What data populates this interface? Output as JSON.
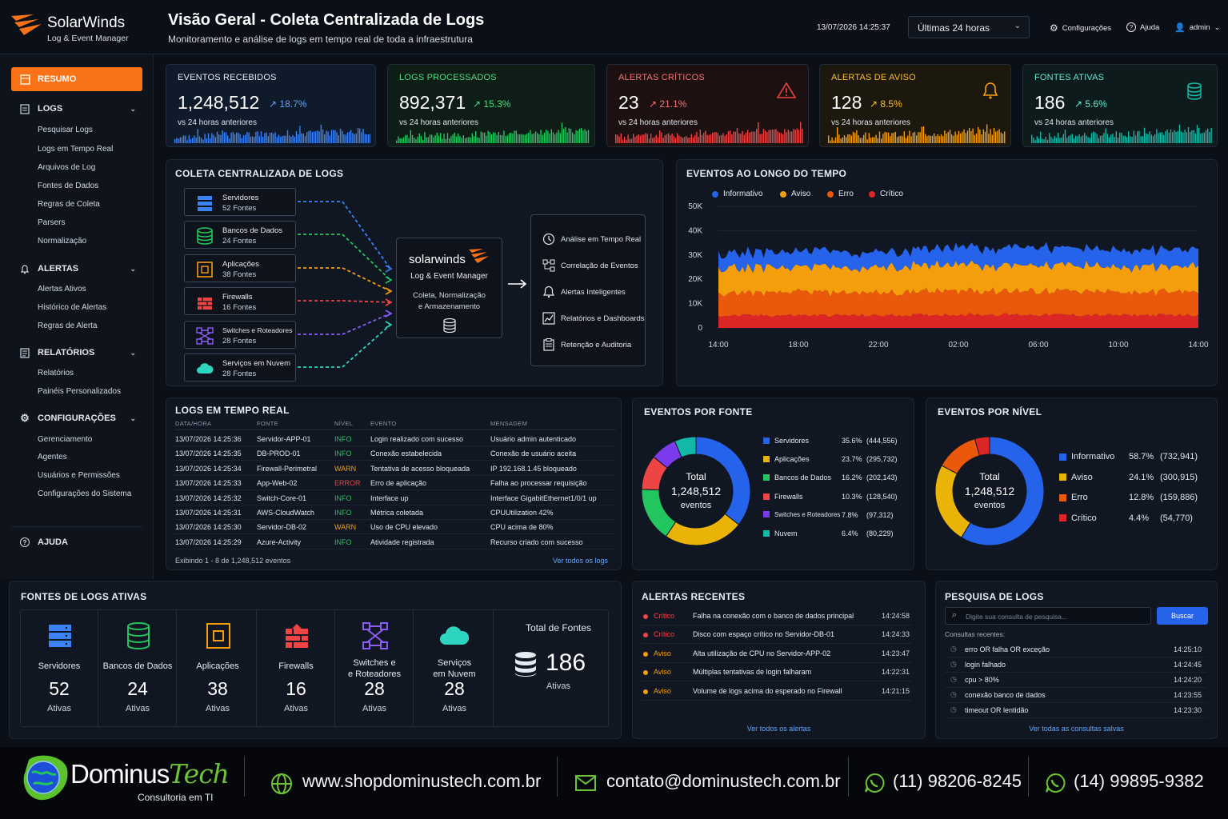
{
  "brand": {
    "name": "SolarWinds",
    "product": "Log & Event Manager"
  },
  "header": {
    "title": "Visão Geral - Coleta Centralizada de Logs",
    "subtitle": "Monitoramento e análise de logs em tempo real de toda a infraestrutura",
    "datetime": "13/07/2026 14:25:37",
    "range": "Últimas 24 horas",
    "settings": "Configurações",
    "help": "Ajuda",
    "user": "admin"
  },
  "sidebar": {
    "resumo": "RESUMO",
    "logs": {
      "label": "LOGS",
      "items": [
        "Pesquisar Logs",
        "Logs em Tempo Real",
        "Arquivos de Log",
        "Fontes de Dados",
        "Regras de Coleta",
        "Parsers",
        "Normalização"
      ]
    },
    "alertas": {
      "label": "ALERTAS",
      "items": [
        "Alertas Ativos",
        "Histórico de Alertas",
        "Regras de Alerta"
      ]
    },
    "relatorios": {
      "label": "RELATÓRIOS",
      "items": [
        "Relatórios",
        "Painéis Personalizados"
      ]
    },
    "config": {
      "label": "CONFIGURAÇÕES",
      "items": [
        "Gerenciamento",
        "Agentes",
        "Usuários e Permissões",
        "Configurações do Sistema"
      ]
    },
    "ajuda": "AJUDA"
  },
  "kpis": [
    {
      "title": "EVENTOS RECEBIDOS",
      "value": "1,248,512",
      "delta": "18.7%",
      "sub": "vs 24 horas anteriores",
      "color": "#3b82f6"
    },
    {
      "title": "LOGS PROCESSADOS",
      "value": "892,371",
      "delta": "15.3%",
      "sub": "vs 24 horas anteriores",
      "color": "#22c55e"
    },
    {
      "title": "ALERTAS CRÍTICOS",
      "value": "23",
      "delta": "21.1%",
      "sub": "vs 24 horas anteriores",
      "color": "#ef4444"
    },
    {
      "title": "ALERTAS DE AVISO",
      "value": "128",
      "delta": "8.5%",
      "sub": "vs 24 horas anteriores",
      "color": "#f59e0b"
    },
    {
      "title": "FONTES ATIVAS",
      "value": "186",
      "delta": "5.6%",
      "sub": "vs 24 horas anteriores",
      "color": "#14b8a6"
    }
  ],
  "collection": {
    "title": "COLETA CENTRALIZADA DE LOGS",
    "sources": [
      {
        "name": "Servidores",
        "count": "52 Fontes",
        "color": "#3b82f6",
        "icon": "server-icon"
      },
      {
        "name": "Bancos de Dados",
        "count": "24 Fontes",
        "color": "#22c55e",
        "icon": "database-icon"
      },
      {
        "name": "Aplicações",
        "count": "38 Fontes",
        "color": "#f59e0b",
        "icon": "app-icon"
      },
      {
        "name": "Firewalls",
        "count": "16 Fontes",
        "color": "#ef4444",
        "icon": "firewall-icon"
      },
      {
        "name": "Switches e Roteadores",
        "count": "28 Fontes",
        "color": "#8b5cf6",
        "icon": "switch-icon"
      },
      {
        "name": "Serviços em Nuvem",
        "count": "28 Fontes",
        "color": "#2dd4bf",
        "icon": "cloud-icon"
      }
    ],
    "center": {
      "brand": "solarwinds",
      "product": "Log & Event Manager",
      "desc1": "Coleta, Normalização",
      "desc2": "e Armazenamento"
    },
    "outputs": [
      "Análise em Tempo Real",
      "Correlação de Eventos",
      "Alertas Inteligentes",
      "Relatórios e Dashboards",
      "Retenção e Auditoria"
    ]
  },
  "timechart": {
    "title": "EVENTOS AO LONGO DO TEMPO"
  },
  "chart_data": {
    "type": "area",
    "stacked": true,
    "x": [
      "14:00",
      "18:00",
      "22:00",
      "02:00",
      "06:00",
      "10:00",
      "14:00"
    ],
    "ylim": [
      0,
      50000
    ],
    "yticks": [
      "50K",
      "40K",
      "30K",
      "20K",
      "10K",
      "0"
    ],
    "legend_position": "top-left",
    "series": [
      {
        "name": "Informativo",
        "color": "#2563eb",
        "values": [
          6000,
          6500,
          6200,
          7000,
          7500,
          6800,
          7200
        ]
      },
      {
        "name": "Aviso",
        "color": "#f59e0b",
        "values": [
          10000,
          10500,
          10200,
          11000,
          10800,
          10300,
          10600
        ]
      },
      {
        "name": "Erro",
        "color": "#ea580c",
        "values": [
          9000,
          9500,
          9300,
          10000,
          9800,
          9400,
          9600
        ]
      },
      {
        "name": "Crítico",
        "color": "#dc2626",
        "values": [
          5000,
          5200,
          5100,
          5500,
          5400,
          5200,
          5300
        ]
      }
    ]
  },
  "logs": {
    "title": "LOGS EM TEMPO REAL",
    "headers": [
      "DATA/HORA",
      "FONTE",
      "NÍVEL",
      "EVENTO",
      "MENSAGEM"
    ],
    "rows": [
      [
        "13/07/2026 14:25:36",
        "Servidor-APP-01",
        "INFO",
        "Login realizado com sucesso",
        "Usuário admin autenticado"
      ],
      [
        "13/07/2026 14:25:35",
        "DB-PROD-01",
        "INFO",
        "Conexão estabelecida",
        "Conexão de usuário aceita"
      ],
      [
        "13/07/2026 14:25:34",
        "Firewall-Perimetral",
        "WARN",
        "Tentativa de acesso bloqueada",
        "IP 192.168.1.45 bloqueado"
      ],
      [
        "13/07/2026 14:25:33",
        "App-Web-02",
        "ERROR",
        "Erro de aplicação",
        "Falha ao processar requisição"
      ],
      [
        "13/07/2026 14:25:32",
        "Switch-Core-01",
        "INFO",
        "Interface up",
        "Interface GigabitEthernet1/0/1 up"
      ],
      [
        "13/07/2026 14:25:31",
        "AWS-CloudWatch",
        "INFO",
        "Métrica coletada",
        "CPUUtilization 42%"
      ],
      [
        "13/07/2026 14:25:30",
        "Servidor-DB-02",
        "WARN",
        "Uso de CPU elevado",
        "CPU acima de 80%"
      ],
      [
        "13/07/2026 14:25:29",
        "Azure-Activity",
        "INFO",
        "Atividade registrada",
        "Recurso criado com sucesso"
      ]
    ],
    "footer": "Exibindo 1 - 8 de 1,248,512 eventos",
    "link": "Ver todos os logs"
  },
  "by_source": {
    "title": "EVENTOS POR FONTE",
    "total_label": "Total",
    "total": "1,248,512",
    "unit": "eventos",
    "items": [
      {
        "name": "Servidores",
        "pct": "35.6%",
        "count": "(444,556)",
        "value": 35.6,
        "color": "#2563eb"
      },
      {
        "name": "Aplicações",
        "pct": "23.7%",
        "count": "(295,732)",
        "value": 23.7,
        "color": "#eab308"
      },
      {
        "name": "Bancos de Dados",
        "pct": "16.2%",
        "count": "(202,143)",
        "value": 16.2,
        "color": "#22c55e"
      },
      {
        "name": "Firewalls",
        "pct": "10.3%",
        "count": "(128,540)",
        "value": 10.3,
        "color": "#ef4444"
      },
      {
        "name": "Switches e Roteadores",
        "pct": "7.8%",
        "count": "(97,312)",
        "value": 7.8,
        "color": "#7c3aed"
      },
      {
        "name": "Nuvem",
        "pct": "6.4%",
        "count": "(80,229)",
        "value": 6.4,
        "color": "#14b8a6"
      }
    ]
  },
  "by_level": {
    "title": "EVENTOS POR NÍVEL",
    "total_label": "Total",
    "total": "1,248,512",
    "unit": "eventos",
    "items": [
      {
        "name": "Informativo",
        "pct": "58.7%",
        "count": "(732,941)",
        "value": 58.7,
        "color": "#2563eb"
      },
      {
        "name": "Aviso",
        "pct": "24.1%",
        "count": "(300,915)",
        "value": 24.1,
        "color": "#eab308"
      },
      {
        "name": "Erro",
        "pct": "12.8%",
        "count": "(159,886)",
        "value": 12.8,
        "color": "#ea580c"
      },
      {
        "name": "Crítico",
        "pct": "4.4%",
        "count": "(54,770)",
        "value": 4.4,
        "color": "#dc2626"
      }
    ]
  },
  "active_sources": {
    "title": "FONTES DE LOGS ATIVAS",
    "items": [
      {
        "name1": "Servidores",
        "name2": "",
        "num": "52",
        "label": "Ativas"
      },
      {
        "name1": "Bancos de Dados",
        "name2": "",
        "num": "24",
        "label": "Ativas"
      },
      {
        "name1": "Aplicações",
        "name2": "",
        "num": "38",
        "label": "Ativas"
      },
      {
        "name1": "Firewalls",
        "name2": "",
        "num": "16",
        "label": "Ativas"
      },
      {
        "name1": "Switches e",
        "name2": "e Roteadores",
        "num": "28",
        "label": "Ativas"
      },
      {
        "name1": "Serviços",
        "name2": "em Nuvem",
        "num": "28",
        "label": "Ativas"
      }
    ],
    "total_label": "Total de Fontes",
    "total": "186",
    "total_sub": "Ativas"
  },
  "alerts": {
    "title": "ALERTAS RECENTES",
    "rows": [
      {
        "level": "Crítico",
        "msg": "Falha na conexão com o banco de dados principal",
        "time": "14:24:58",
        "color": "#ef4444"
      },
      {
        "level": "Crítico",
        "msg": "Disco com espaço crítico no Servidor-DB-01",
        "time": "14:24:33",
        "color": "#ef4444"
      },
      {
        "level": "Aviso",
        "msg": "Alta utilização de CPU no Servidor-APP-02",
        "time": "14:23:47",
        "color": "#f59e0b"
      },
      {
        "level": "Aviso",
        "msg": "Múltiplas tentativas de login falharam",
        "time": "14:22:31",
        "color": "#f59e0b"
      },
      {
        "level": "Aviso",
        "msg": "Volume de logs acima do esperado no Firewall",
        "time": "14:21:15",
        "color": "#f59e0b"
      }
    ],
    "link": "Ver todos os alertas"
  },
  "search": {
    "title": "PESQUISA DE LOGS",
    "placeholder": "Digite sua consulta de pesquisa...",
    "button": "Buscar",
    "recent_label": "Consultas recentes:",
    "rows": [
      {
        "q": "erro OR falha OR exceção",
        "t": "14:25:10"
      },
      {
        "q": "login falhado",
        "t": "14:24:45"
      },
      {
        "q": "cpu > 80%",
        "t": "14:24:20"
      },
      {
        "q": "conexão banco de dados",
        "t": "14:23:55"
      },
      {
        "q": "timeout OR lentidão",
        "t": "14:23:30"
      }
    ],
    "link": "Ver todas as consultas salvas"
  },
  "footer": {
    "brand1": "Dominus",
    "brand2": "Tech",
    "tagline": "Consultoria em TI",
    "site": "www.shopdominustech.com.br",
    "email": "contato@dominustech.com.br",
    "phone1": "(11) 98206-8245",
    "phone2": "(14) 99895-9382"
  }
}
